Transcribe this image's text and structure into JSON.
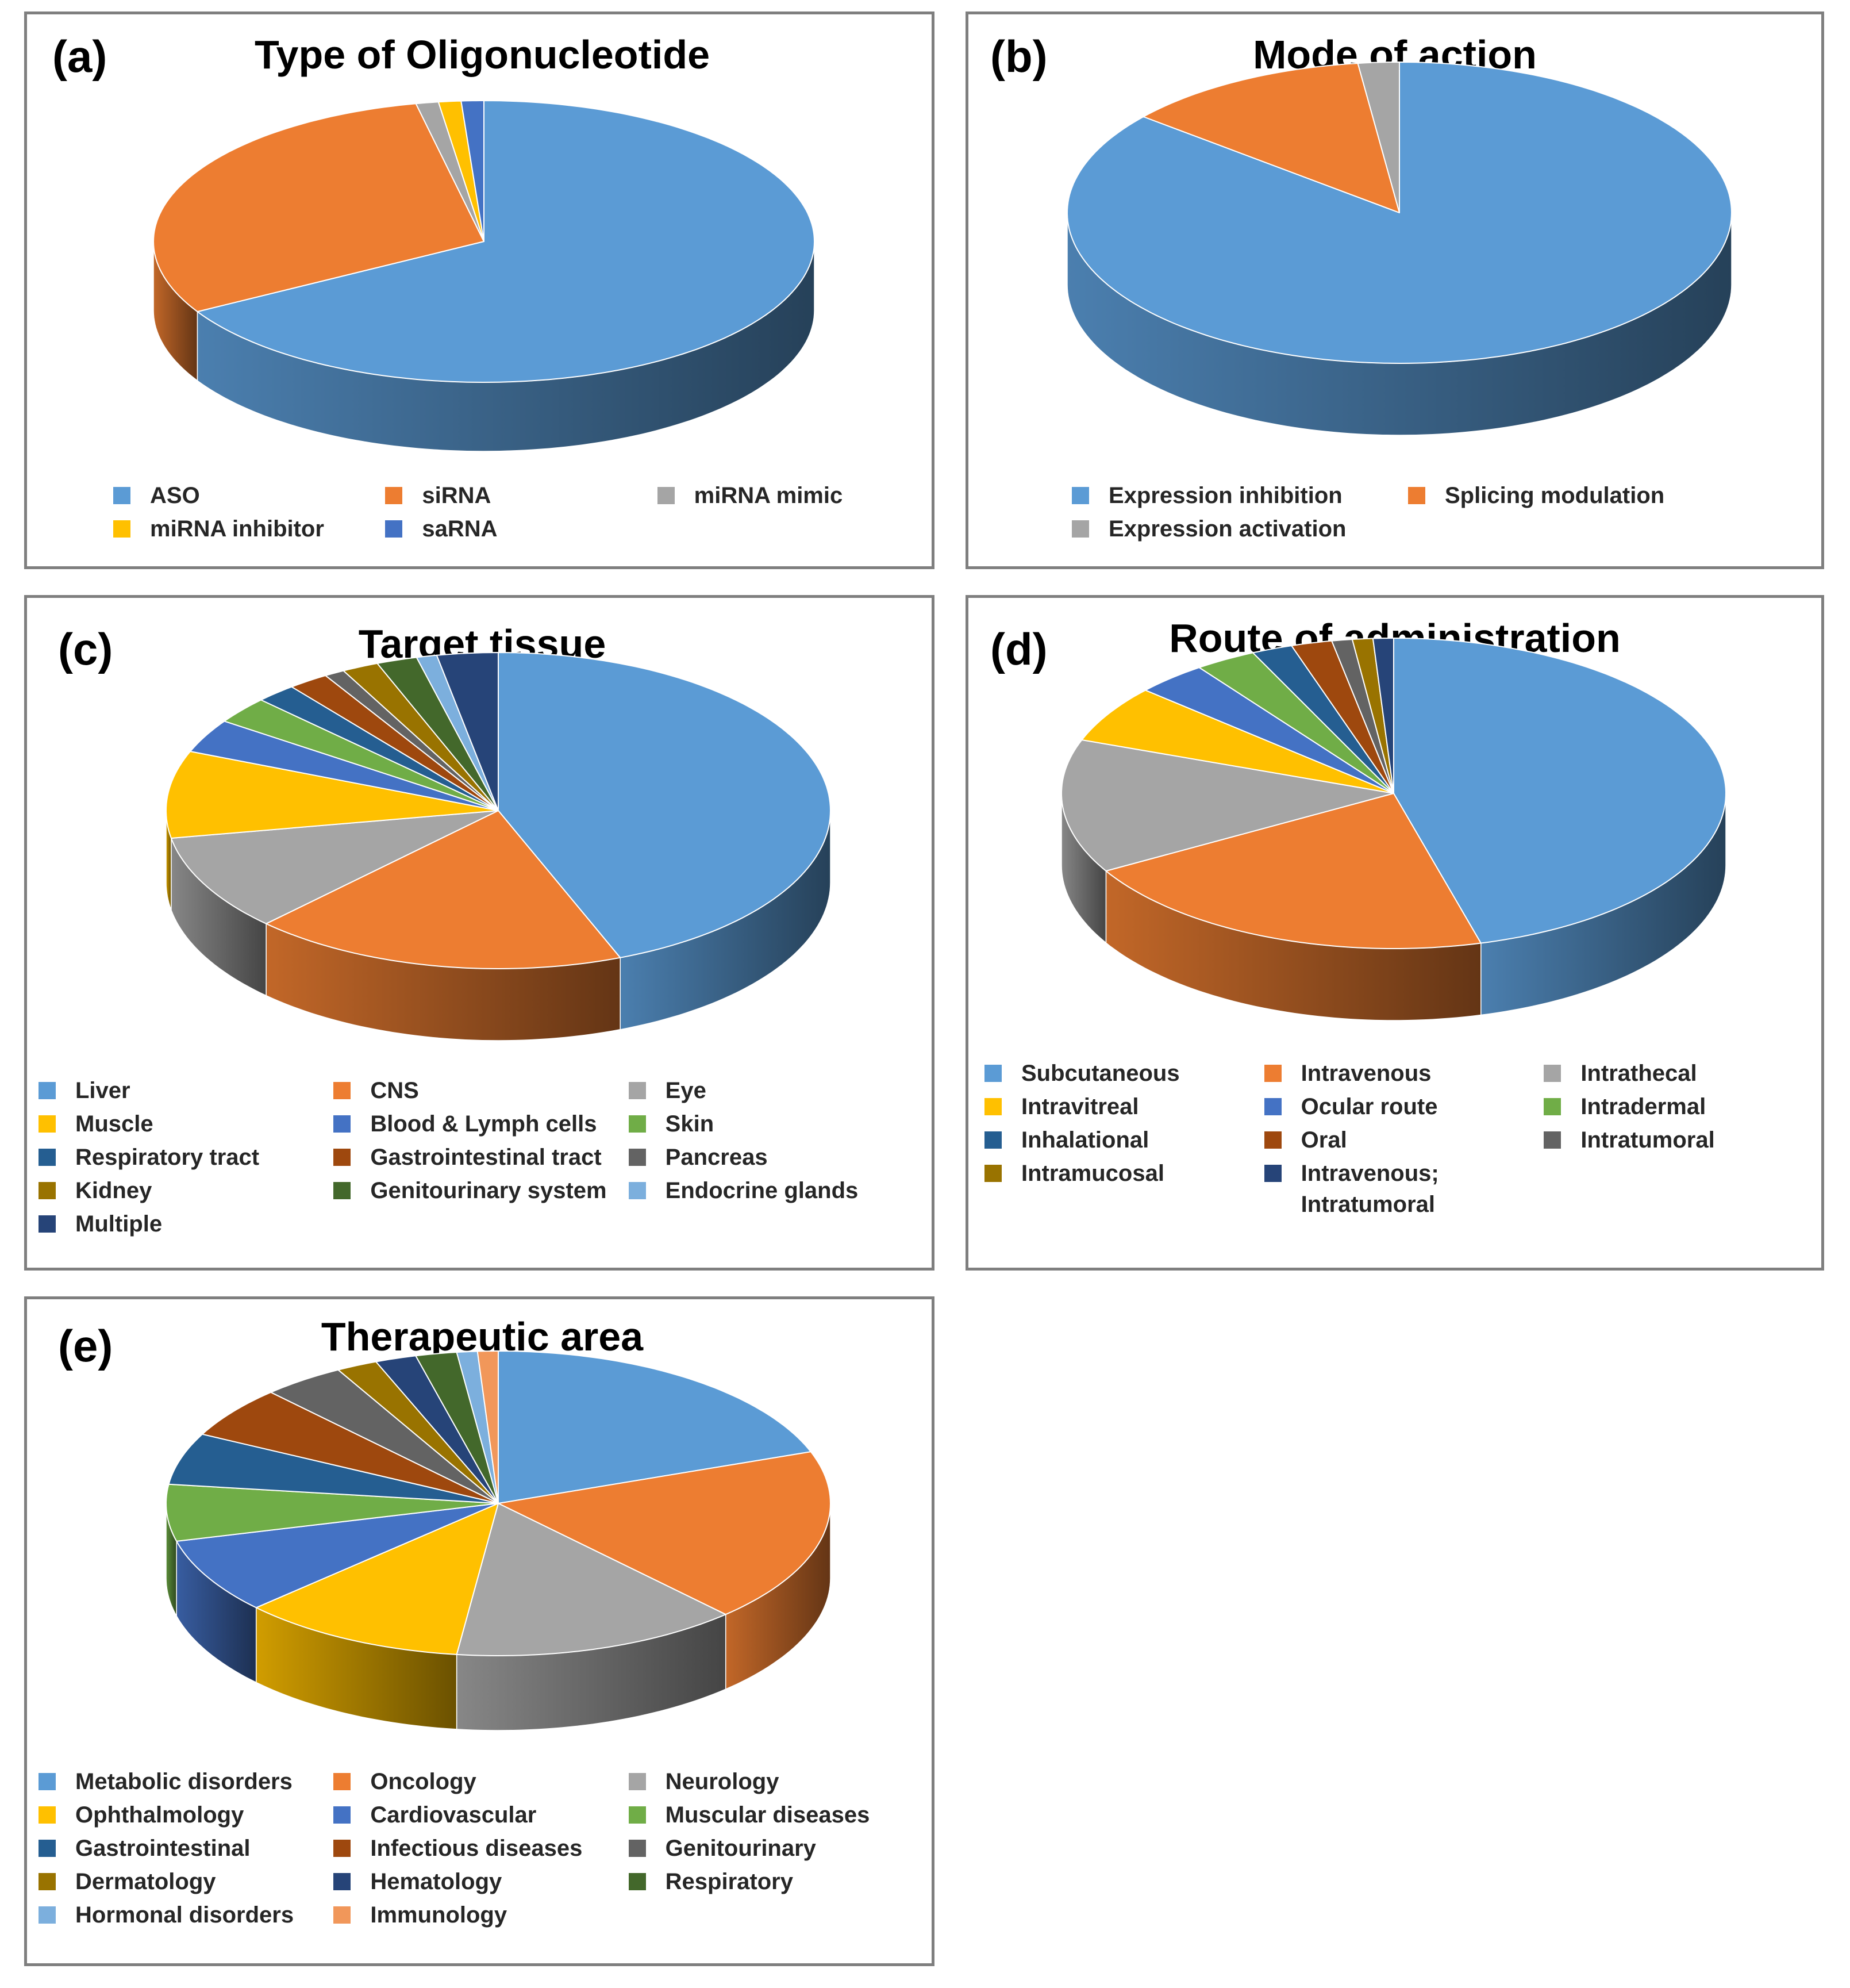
{
  "charts": [
    {
      "id": "a",
      "letter": "(a)",
      "title": "Type of Oligonucleotide",
      "legend_columns": 3,
      "chart_data": {
        "type": "pie",
        "title": "Type of Oligonucleotide",
        "labels": [
          "ASO",
          "siRNA",
          "miRNA mimic",
          "miRNA inhibitor",
          "saRNA"
        ],
        "values": [
          66.7,
          30.0,
          1.1,
          1.1,
          1.1
        ],
        "colors": [
          "#5b9bd5",
          "#ed7d31",
          "#a5a5a5",
          "#ffc000",
          "#4472c4"
        ]
      }
    },
    {
      "id": "b",
      "letter": "(b)",
      "title": "Mode of action",
      "legend_columns": 2,
      "chart_data": {
        "type": "pie",
        "title": "Mode of action",
        "labels": [
          "Expression inhibition",
          "Splicing modulation",
          "Expression activation"
        ],
        "values": [
          86,
          12,
          2
        ],
        "colors": [
          "#5b9bd5",
          "#ed7d31",
          "#a5a5a5"
        ]
      }
    },
    {
      "id": "c",
      "letter": "(c)",
      "title": "Target tissue",
      "legend_columns": 3,
      "chart_data": {
        "type": "pie",
        "title": "Target tissue",
        "labels": [
          "Liver",
          "CNS",
          "Eye",
          "Muscle",
          "Blood & Lymph cells",
          "Skin",
          "Respiratory tract",
          "Gastrointestinal tract",
          "Pancreas",
          "Kidney",
          "Genitourinary system",
          "Endocrine glands",
          "Multiple"
        ],
        "values": [
          44.5,
          18.5,
          10.0,
          9.0,
          3.5,
          2.8,
          2.0,
          2.0,
          1.0,
          1.8,
          2.0,
          1.0,
          3.0
        ],
        "colors": [
          "#5b9bd5",
          "#ed7d31",
          "#a5a5a5",
          "#ffc000",
          "#4472c4",
          "#70ad47",
          "#255e91",
          "#9e480e",
          "#636363",
          "#997300",
          "#43682b",
          "#7cafdd",
          "#264478"
        ]
      }
    },
    {
      "id": "d",
      "letter": "(d)",
      "title": "Route of administration",
      "legend_columns": 3,
      "chart_data": {
        "type": "pie",
        "title": "Route of administration",
        "labels": [
          "Subcutaneous",
          "Intravenous",
          "Intrathecal",
          "Intravitreal",
          "Ocular route",
          "Intradermal",
          "Inhalational",
          "Oral",
          "Intratumoral",
          "Intramucosal",
          "Intravenous; Intratumoral"
        ],
        "values": [
          46.0,
          21.0,
          14.0,
          6.0,
          3.5,
          3.0,
          2.0,
          2.0,
          1.0,
          1.0,
          1.0
        ],
        "colors": [
          "#5b9bd5",
          "#ed7d31",
          "#a5a5a5",
          "#ffc000",
          "#4472c4",
          "#70ad47",
          "#255e91",
          "#9e480e",
          "#636363",
          "#997300",
          "#264478"
        ]
      }
    },
    {
      "id": "e",
      "letter": "(e)",
      "title": "Therapeutic area",
      "legend_columns": 3,
      "chart_data": {
        "type": "pie",
        "title": "Therapeutic area",
        "labels": [
          "Metabolic disorders",
          "Oncology",
          "Neurology",
          "Ophthalmology",
          "Cardiovascular",
          "Muscular diseases",
          "Gastrointestinal",
          "Infectious diseases",
          "Genitourinary",
          "Dermatology",
          "Hematology",
          "Respiratory",
          "Hormonal disorders",
          "Immunology"
        ],
        "values": [
          19.5,
          18.5,
          14.0,
          11.0,
          8.0,
          6.0,
          5.5,
          5.5,
          4.0,
          2.0,
          2.0,
          2.0,
          1.0,
          1.0
        ],
        "colors": [
          "#5b9bd5",
          "#ed7d31",
          "#a5a5a5",
          "#ffc000",
          "#4472c4",
          "#70ad47",
          "#255e91",
          "#9e480e",
          "#636363",
          "#997300",
          "#264478",
          "#43682b",
          "#7cafdd",
          "#f1975a"
        ]
      }
    }
  ]
}
